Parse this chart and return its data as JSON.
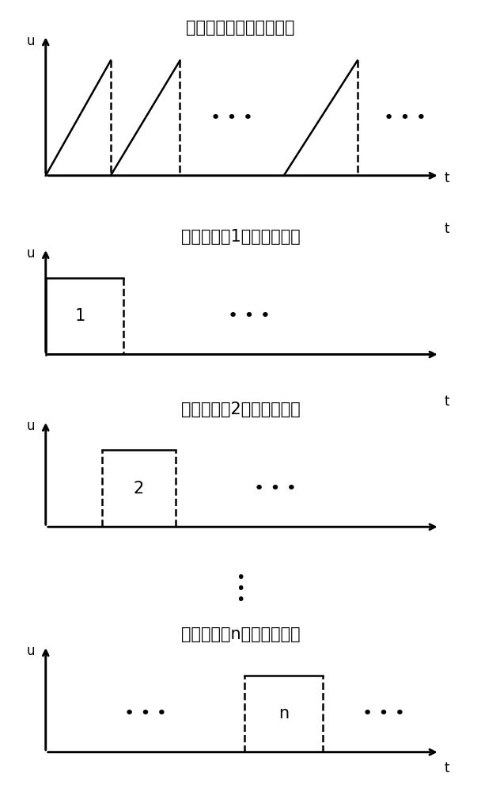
{
  "title1": "压电陶瓷片驱动电压信号",
  "title2": "光开关支路1电压控制信号",
  "title3": "光开关支路2电压控制信号",
  "title4": "光开关支路n电压控制信号",
  "bg_color": "#ffffff",
  "line_color": "#000000",
  "label_u": "u",
  "label_t": "t",
  "label_1": "1",
  "label_2": "2",
  "label_n": "n",
  "font_size_title": 15,
  "font_size_label": 12,
  "font_size_dots": 16,
  "font_size_number": 15,
  "lw": 1.8,
  "arrow_scale": 12
}
